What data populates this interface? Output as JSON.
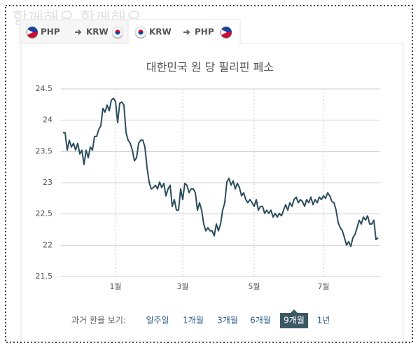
{
  "watermark": "함께해요 함께해요",
  "tabs": [
    {
      "from": "PHP",
      "to": "KRW",
      "active": false
    },
    {
      "from": "KRW",
      "to": "PHP",
      "active": true
    }
  ],
  "chart_data": {
    "type": "line",
    "title": "대한민국 원 당 필리핀 페소",
    "color": "#2b4d5c",
    "x": [
      1,
      2,
      3,
      4,
      5,
      6,
      7,
      8,
      9,
      10,
      11,
      12,
      13,
      14,
      15,
      16,
      17,
      18,
      19,
      20,
      21,
      22,
      23,
      24,
      25,
      26,
      27,
      28,
      29,
      30,
      31,
      32,
      33,
      34,
      35,
      36,
      37,
      38,
      39,
      40,
      41,
      42,
      43,
      44,
      45,
      46,
      47,
      48,
      49,
      50,
      51,
      52,
      53,
      54,
      55,
      56,
      57,
      58,
      59,
      60,
      61,
      62,
      63,
      64,
      65,
      66,
      67,
      68,
      69,
      70,
      71,
      72,
      73,
      74,
      75,
      76,
      77,
      78,
      79,
      80,
      81,
      82,
      83,
      84,
      85,
      86,
      87,
      88,
      89,
      90,
      91,
      92,
      93,
      94,
      95,
      96,
      97,
      98,
      99,
      100,
      101,
      102,
      103,
      104,
      105,
      106,
      107,
      108,
      109,
      110,
      111,
      112,
      113,
      114,
      115,
      116,
      117,
      118,
      119,
      120,
      121,
      122,
      123,
      124,
      125,
      126,
      127,
      128,
      129,
      130,
      131,
      132,
      133,
      134,
      135,
      136,
      137,
      138,
      139,
      140,
      141,
      142,
      143,
      144,
      145,
      146,
      147,
      148,
      149,
      150,
      151
    ],
    "values": [
      23.8,
      23.8,
      23.52,
      23.68,
      23.57,
      23.63,
      23.52,
      23.63,
      23.46,
      23.52,
      23.29,
      23.52,
      23.4,
      23.57,
      23.52,
      23.74,
      23.74,
      23.85,
      23.91,
      24.19,
      24.13,
      24.24,
      24.15,
      24.32,
      24.35,
      24.3,
      23.96,
      24.27,
      24.29,
      24.24,
      23.8,
      23.68,
      23.63,
      23.52,
      23.35,
      23.4,
      23.63,
      23.68,
      23.68,
      23.57,
      23.24,
      23.01,
      22.9,
      22.92,
      22.96,
      22.9,
      23.01,
      22.92,
      22.99,
      22.79,
      22.9,
      22.96,
      22.62,
      22.73,
      22.56,
      22.56,
      22.9,
      22.73,
      22.99,
      22.96,
      22.84,
      22.9,
      22.9,
      22.84,
      22.56,
      22.68,
      22.56,
      22.34,
      22.23,
      22.28,
      22.23,
      22.23,
      22.15,
      22.34,
      22.23,
      22.34,
      22.56,
      22.68,
      23.01,
      23.07,
      22.96,
      23.03,
      22.9,
      22.99,
      22.92,
      22.79,
      22.84,
      22.73,
      22.68,
      22.73,
      22.68,
      22.62,
      22.73,
      22.56,
      22.62,
      22.62,
      22.51,
      22.56,
      22.51,
      22.56,
      22.45,
      22.51,
      22.45,
      22.51,
      22.47,
      22.56,
      22.65,
      22.56,
      22.68,
      22.62,
      22.73,
      22.77,
      22.68,
      22.73,
      22.7,
      22.62,
      22.73,
      22.68,
      22.77,
      22.65,
      22.73,
      22.68,
      22.77,
      22.73,
      22.79,
      22.75,
      22.84,
      22.79,
      22.7,
      22.68,
      22.56,
      22.36,
      22.28,
      22.23,
      22.12,
      22.0,
      22.06,
      21.98,
      22.12,
      22.17,
      22.28,
      22.4,
      22.34,
      22.45,
      22.4,
      22.47,
      22.34,
      22.34,
      22.4,
      22.09,
      22.12
    ],
    "xlim": [
      0,
      152
    ],
    "xticks": [
      {
        "value": 26,
        "label": "1월"
      },
      {
        "value": 58,
        "label": "3월"
      },
      {
        "value": 92,
        "label": "5월"
      },
      {
        "value": 125,
        "label": "7월"
      }
    ],
    "ylim": [
      21.5,
      24.5
    ],
    "yticks": [
      21.5,
      22,
      22.5,
      23,
      23.5,
      24,
      24.5
    ],
    "grid": true
  },
  "history": {
    "label": "과거 환율 보기:",
    "options": [
      "일주일",
      "1개월",
      "3개월",
      "6개월",
      "9개월",
      "1년"
    ],
    "selected": 4
  }
}
